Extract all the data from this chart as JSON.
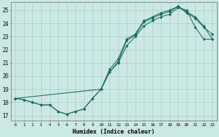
{
  "xlabel": "Humidex (Indice chaleur)",
  "background_color": "#cce8e4",
  "grid_color": "#aacfca",
  "line_color": "#1a6b5a",
  "xlim": [
    -0.5,
    23.5
  ],
  "ylim": [
    16.6,
    25.6
  ],
  "xticks": [
    0,
    1,
    2,
    3,
    4,
    5,
    6,
    7,
    8,
    9,
    10,
    11,
    12,
    13,
    14,
    15,
    16,
    17,
    18,
    19,
    20,
    21,
    22,
    23
  ],
  "yticks": [
    17,
    18,
    19,
    20,
    21,
    22,
    23,
    24,
    25
  ],
  "curve1_x": [
    0,
    1,
    2,
    3,
    4,
    5,
    6,
    7,
    8,
    9,
    10,
    11,
    12,
    13,
    14,
    15,
    16,
    17,
    18,
    19,
    20,
    21,
    22,
    23
  ],
  "curve1_y": [
    18.3,
    18.2,
    18.0,
    17.8,
    17.8,
    17.3,
    17.1,
    17.3,
    17.5,
    18.3,
    19.0,
    20.3,
    21.0,
    22.3,
    23.0,
    23.8,
    24.2,
    24.5,
    24.7,
    25.2,
    25.0,
    23.7,
    22.8,
    22.8
  ],
  "curve2_x": [
    0,
    1,
    2,
    3,
    4,
    5,
    6,
    7,
    8,
    9,
    10,
    11,
    12,
    13,
    14,
    15,
    16,
    17,
    18,
    19,
    20,
    21,
    22,
    23
  ],
  "curve2_y": [
    18.3,
    18.2,
    18.0,
    17.8,
    17.8,
    17.3,
    17.1,
    17.3,
    17.5,
    18.3,
    19.0,
    20.5,
    21.3,
    22.8,
    23.2,
    24.2,
    24.5,
    24.8,
    25.0,
    25.3,
    24.8,
    24.4,
    23.7,
    23.2
  ],
  "curve3_x": [
    0,
    10,
    11,
    12,
    13,
    14,
    15,
    16,
    17,
    18,
    19,
    20,
    21,
    22,
    23
  ],
  "curve3_y": [
    18.3,
    19.0,
    20.3,
    21.1,
    22.7,
    23.1,
    24.1,
    24.4,
    24.7,
    24.9,
    25.3,
    24.9,
    24.5,
    23.8,
    22.8
  ]
}
